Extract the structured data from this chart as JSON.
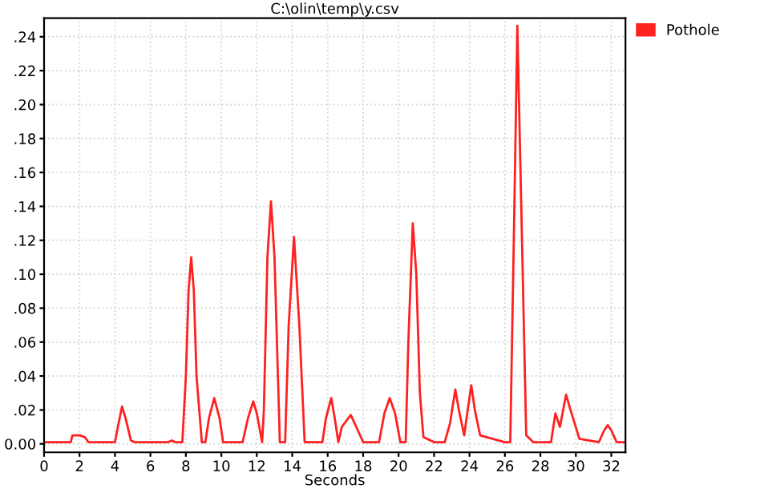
{
  "chart_data": {
    "type": "line",
    "title": "C:\\olin\\temp\\y.csv",
    "xlabel": "Seconds",
    "series": [
      {
        "name": "Pothole",
        "color": "#ff2020",
        "x": [
          0,
          1.5,
          1.6,
          2.0,
          2.3,
          2.5,
          4.0,
          4.2,
          4.4,
          4.6,
          4.9,
          5.1,
          7.0,
          7.2,
          7.4,
          7.8,
          8.0,
          8.15,
          8.3,
          8.45,
          8.6,
          8.9,
          9.1,
          9.3,
          9.6,
          9.9,
          10.1,
          11.2,
          11.5,
          11.8,
          12.0,
          12.3,
          12.4,
          12.6,
          12.8,
          13.0,
          13.3,
          13.6,
          13.8,
          14.1,
          14.4,
          14.7,
          15.7,
          15.9,
          16.2,
          16.4,
          16.6,
          16.8,
          17.3,
          17.7,
          18.0,
          18.9,
          19.2,
          19.5,
          19.8,
          20.1,
          20.4,
          20.55,
          20.8,
          21.0,
          21.2,
          21.4,
          22.0,
          22.6,
          22.9,
          23.2,
          23.4,
          23.7,
          23.9,
          24.1,
          24.3,
          24.6,
          26.0,
          26.3,
          26.5,
          26.7,
          26.9,
          27.2,
          27.6,
          28.6,
          28.85,
          29.1,
          29.45,
          29.7,
          30.2,
          31.3,
          31.6,
          31.8,
          32.0,
          32.3,
          32.8
        ],
        "values": [
          0.001,
          0.001,
          0.005,
          0.005,
          0.004,
          0.001,
          0.001,
          0.012,
          0.022,
          0.015,
          0.002,
          0.001,
          0.001,
          0.002,
          0.001,
          0.001,
          0.04,
          0.09,
          0.11,
          0.09,
          0.04,
          0.001,
          0.001,
          0.015,
          0.027,
          0.015,
          0.001,
          0.001,
          0.015,
          0.025,
          0.018,
          0.001,
          0.02,
          0.11,
          0.143,
          0.11,
          0.001,
          0.001,
          0.07,
          0.122,
          0.07,
          0.001,
          0.001,
          0.015,
          0.027,
          0.015,
          0.001,
          0.01,
          0.017,
          0.008,
          0.001,
          0.001,
          0.018,
          0.027,
          0.018,
          0.001,
          0.001,
          0.06,
          0.13,
          0.1,
          0.03,
          0.004,
          0.001,
          0.001,
          0.012,
          0.032,
          0.02,
          0.005,
          0.02,
          0.0345,
          0.02,
          0.005,
          0.001,
          0.001,
          0.12,
          0.2465,
          0.15,
          0.005,
          0.001,
          0.001,
          0.018,
          0.01,
          0.029,
          0.02,
          0.003,
          0.001,
          0.008,
          0.011,
          0.008,
          0.001,
          0.001
        ]
      }
    ],
    "xlim": [
      0,
      32.8
    ],
    "ylim": [
      -0.005,
      0.251
    ],
    "xticks": [
      0,
      2,
      4,
      6,
      8,
      10,
      12,
      14,
      16,
      18,
      20,
      22,
      24,
      26,
      28,
      30,
      32
    ],
    "yticks": [
      {
        "value": 0,
        "label": "0.00"
      },
      {
        "value": 0.02,
        "label": ".02"
      },
      {
        "value": 0.04,
        "label": ".04"
      },
      {
        "value": 0.06,
        "label": ".06"
      },
      {
        "value": 0.08,
        "label": ".08"
      },
      {
        "value": 0.1,
        "label": ".10"
      },
      {
        "value": 0.12,
        "label": ".12"
      },
      {
        "value": 0.14,
        "label": ".14"
      },
      {
        "value": 0.16,
        "label": ".16"
      },
      {
        "value": 0.18,
        "label": ".18"
      },
      {
        "value": 0.2,
        "label": ".20"
      },
      {
        "value": 0.22,
        "label": ".22"
      },
      {
        "value": 0.24,
        "label": ".24"
      }
    ],
    "grid": true,
    "legend": "top right",
    "marker": "none",
    "line_style": "solid"
  }
}
